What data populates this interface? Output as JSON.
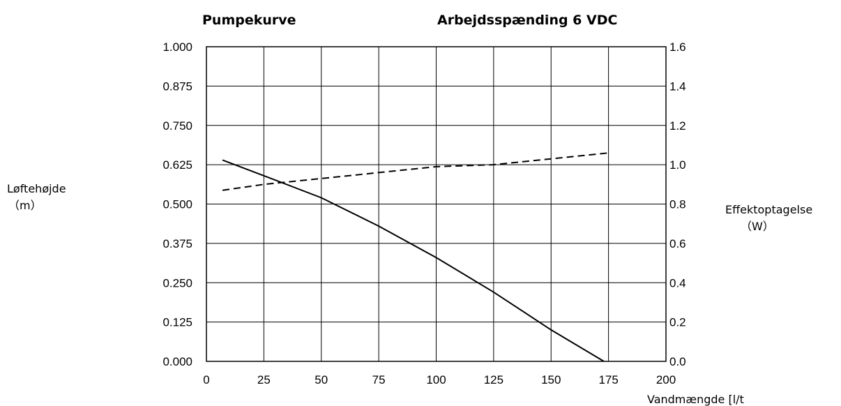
{
  "chart_data": {
    "type": "line",
    "title": "Pumpekurve",
    "subtitle": "Arbejdsspænding 6 VDC",
    "xlabel": "Vandmængde [l/t",
    "ylabel_left": "Løftehøjde",
    "ylabel_left_unit": "（m）",
    "ylabel_right": "Effektoptagelse",
    "ylabel_right_unit": "（W）",
    "xlim": [
      0,
      200
    ],
    "ylim_left": [
      0,
      1
    ],
    "ylim_right": [
      0,
      1.6
    ],
    "x_ticks": [
      "0",
      "25",
      "50",
      "75",
      "100",
      "125",
      "150",
      "175",
      "200"
    ],
    "y_left_ticks": [
      "0.000",
      "0.125",
      "0.250",
      "0.375",
      "0.500",
      "0.625",
      "0.750",
      "0.875",
      "1.000"
    ],
    "y_right_ticks": [
      "0.0",
      "0.2",
      "0.4",
      "0.6",
      "0.8",
      "1.0",
      "1.2",
      "1.4",
      "1.6"
    ],
    "grid": true,
    "series": [
      {
        "style": "solid",
        "axis": "left",
        "color": "#000000",
        "x": [
          7,
          25,
          50,
          75,
          100,
          125,
          150,
          173
        ],
        "y": [
          0.64,
          0.59,
          0.52,
          0.43,
          0.33,
          0.22,
          0.1,
          0.0
        ]
      },
      {
        "style": "dashed",
        "axis": "right",
        "color": "#000000",
        "x": [
          7,
          25,
          50,
          75,
          100,
          125,
          150,
          175
        ],
        "y": [
          0.87,
          0.9,
          0.93,
          0.96,
          0.99,
          1.0,
          1.03,
          1.06
        ]
      }
    ]
  }
}
